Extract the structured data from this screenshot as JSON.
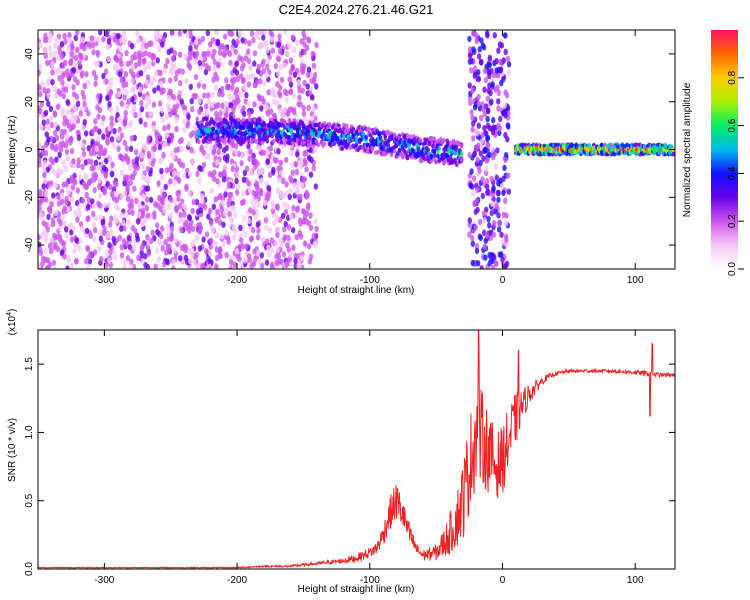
{
  "title": "C2E4.2024.276.21.46.G21",
  "colors": {
    "snr_line": "#ee2222",
    "axis": "#000000",
    "colorbar": [
      "#ffffff",
      "#f4c8f4",
      "#cc55ee",
      "#6600ee",
      "#1111ff",
      "#00bbee",
      "#00ee66",
      "#aaee00",
      "#ffcc00",
      "#ff6600",
      "#ff1166"
    ]
  },
  "chart_data": [
    {
      "type": "heatmap",
      "xlabel": "Height of straight line (km)",
      "ylabel": "Frequency (Hz)",
      "xlim": [
        -350,
        130
      ],
      "ylim": [
        -50,
        50
      ],
      "xticks": [
        -300,
        -200,
        -100,
        0,
        100
      ],
      "yticks": [
        -40,
        -20,
        0,
        20,
        40
      ],
      "colorbar": {
        "label": "Normalized spectral amplitude",
        "range": [
          0,
          1
        ],
        "ticks": [
          "0.0",
          "0.2",
          "0.4",
          "0.6",
          "0.8"
        ],
        "tick_values": [
          0.0,
          0.2,
          0.4,
          0.6,
          0.8
        ]
      },
      "features": [
        {
          "name": "noise",
          "x_range": [
            -350,
            -140
          ],
          "y_range": [
            -50,
            50
          ],
          "amplitude": 0.15
        },
        {
          "name": "signal_band",
          "x": [
            -230,
            -200,
            -150,
            -100,
            -60,
            -40,
            -30
          ],
          "y": [
            8,
            8,
            7,
            4,
            0,
            -1,
            -2
          ],
          "half_width_hz": 5,
          "amplitude": 0.4
        },
        {
          "name": "noise_spike",
          "x_range": [
            -25,
            5
          ],
          "y_range": [
            -50,
            50
          ],
          "amplitude": 0.25
        },
        {
          "name": "clean_carrier",
          "x": [
            10,
            130
          ],
          "y": [
            0,
            0
          ],
          "half_width_hz": 2,
          "amplitude": 0.75
        }
      ]
    },
    {
      "type": "line",
      "xlabel": "Height of straight line (km)",
      "ylabel": "SNR (10 * v/v)",
      "scale_label": "(x10",
      "scale_exp": "4",
      "xlim": [
        -350,
        130
      ],
      "ylim": [
        0,
        1.75
      ],
      "xticks": [
        -300,
        -200,
        -100,
        0,
        100
      ],
      "yticks": [
        "0.0",
        "0.5",
        "1.0",
        "1.5"
      ],
      "ytick_values": [
        0.0,
        0.5,
        1.0,
        1.5
      ],
      "series": [
        {
          "x": [
            -350,
            -300,
            -250,
            -200,
            -180,
            -160,
            -150,
            -140,
            -130,
            -120,
            -110,
            -100,
            -95,
            -90,
            -85,
            -80,
            -75,
            -70,
            -65,
            -60,
            -50,
            -45,
            -40,
            -35,
            -30,
            -25,
            -20,
            -15,
            -10,
            -5,
            0,
            5,
            10,
            15,
            20,
            25,
            30,
            35,
            40,
            50,
            60,
            80,
            100,
            110,
            120,
            130
          ],
          "y": [
            0.01,
            0.01,
            0.01,
            0.01,
            0.02,
            0.02,
            0.03,
            0.04,
            0.05,
            0.06,
            0.08,
            0.12,
            0.15,
            0.25,
            0.4,
            0.5,
            0.4,
            0.25,
            0.15,
            0.1,
            0.12,
            0.18,
            0.25,
            0.35,
            0.5,
            0.75,
            1.0,
            0.95,
            0.85,
            0.75,
            0.8,
            0.95,
            1.1,
            1.2,
            1.28,
            1.33,
            1.38,
            1.41,
            1.43,
            1.45,
            1.45,
            1.45,
            1.44,
            1.43,
            1.42,
            1.42
          ],
          "noise": [
            0.003,
            0.003,
            0.003,
            0.004,
            0.006,
            0.008,
            0.01,
            0.012,
            0.015,
            0.02,
            0.03,
            0.04,
            0.05,
            0.08,
            0.12,
            0.15,
            0.12,
            0.08,
            0.05,
            0.04,
            0.06,
            0.1,
            0.15,
            0.2,
            0.3,
            0.35,
            0.4,
            0.35,
            0.3,
            0.25,
            0.25,
            0.25,
            0.2,
            0.12,
            0.08,
            0.05,
            0.03,
            0.02,
            0.015,
            0.012,
            0.012,
            0.012,
            0.015,
            0.02,
            0.015,
            0.012
          ]
        }
      ],
      "spikes": [
        {
          "x": 111,
          "y": 1.12
        },
        {
          "x": 113,
          "y": 1.65
        },
        {
          "x": -18,
          "y": 1.75
        },
        {
          "x": 12,
          "y": 1.6
        }
      ]
    }
  ]
}
